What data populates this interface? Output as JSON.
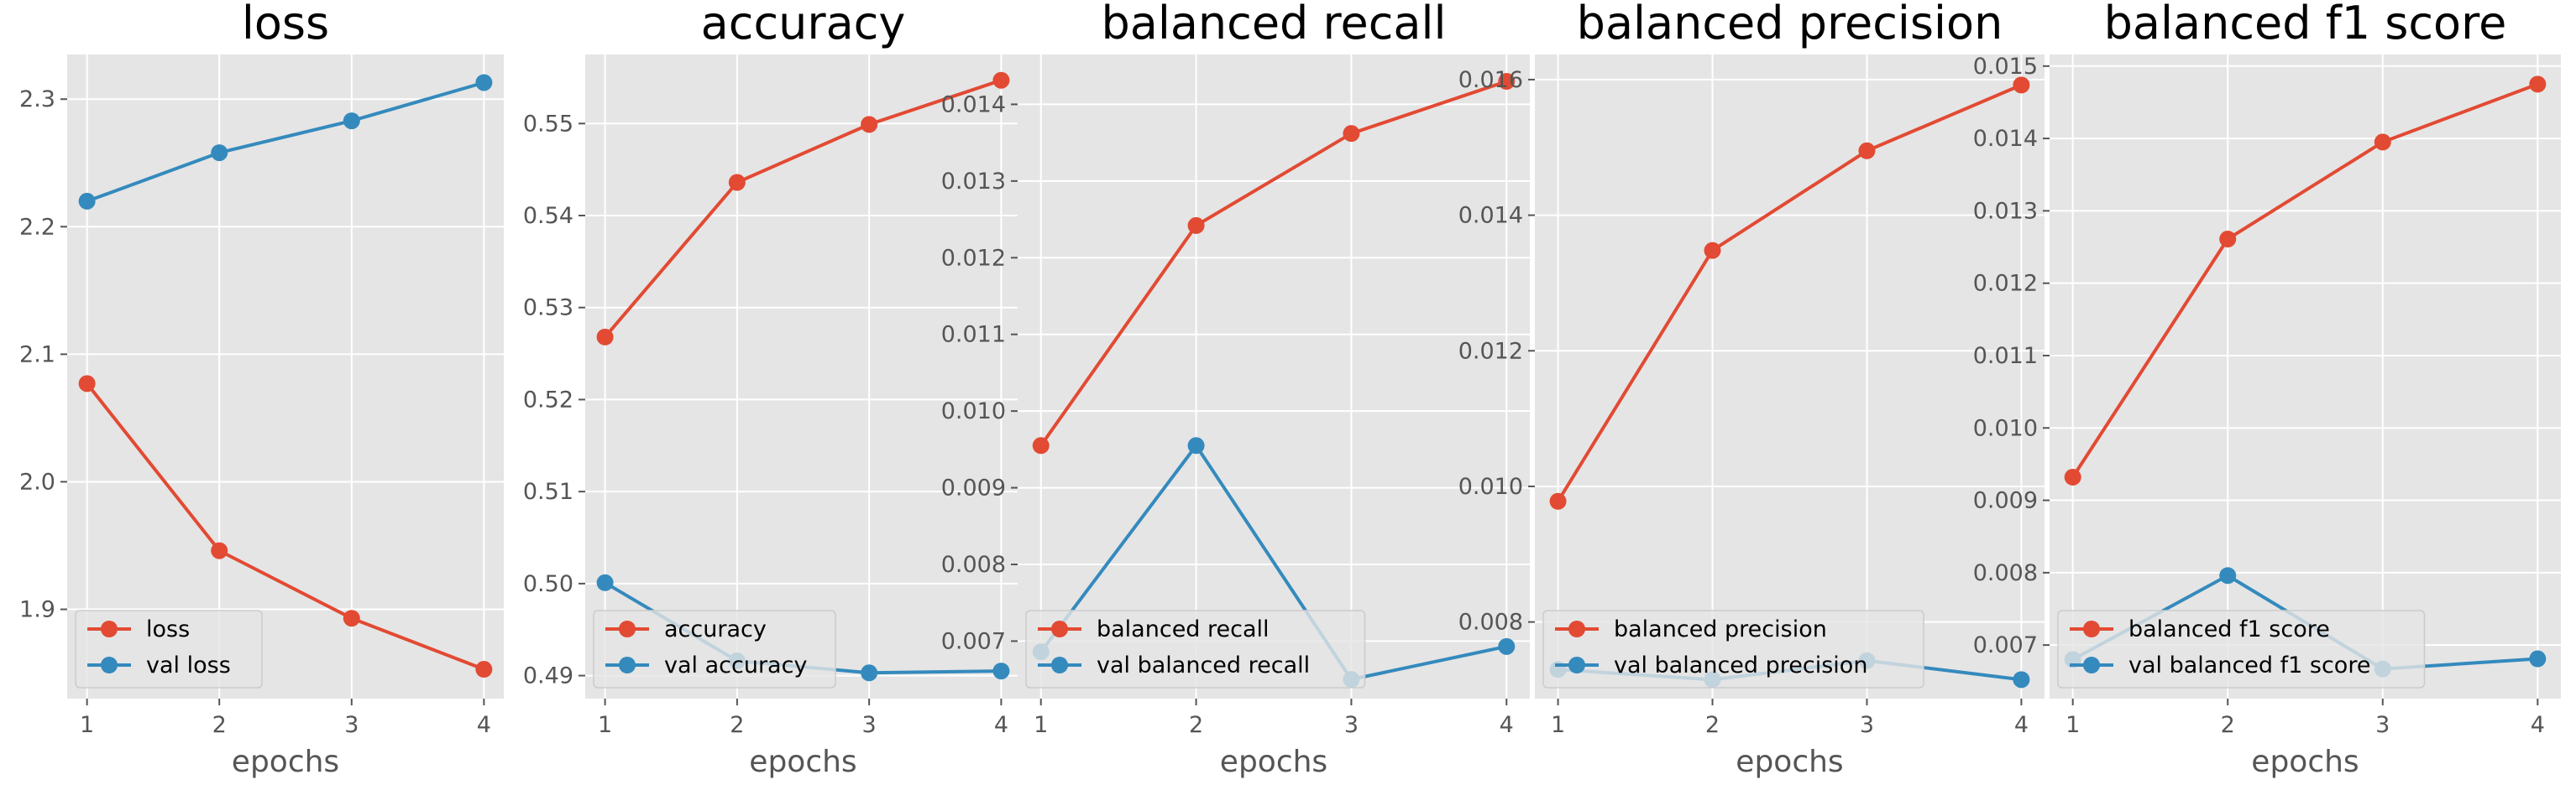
{
  "colors": {
    "train": "#E24A33",
    "val": "#348ABD",
    "panel_bg": "#E5E5E5",
    "grid": "#FFFFFF",
    "tick_text": "#555555"
  },
  "chart_data": [
    {
      "type": "line",
      "title": "loss",
      "xlabel": "epochs",
      "x": [
        1,
        2,
        3,
        4
      ],
      "xticks": [
        "1",
        "2",
        "3",
        "4"
      ],
      "ylim": [
        1.83,
        2.335
      ],
      "yticks": [
        "1.9",
        "2.0",
        "2.1",
        "2.2",
        "2.3"
      ],
      "ytick_values": [
        1.9,
        2.0,
        2.1,
        2.2,
        2.3
      ],
      "legend": "lower-left",
      "grid": true,
      "series": [
        {
          "name": "loss",
          "values": [
            2.077,
            1.946,
            1.893,
            1.853
          ]
        },
        {
          "name": "val loss",
          "values": [
            2.22,
            2.258,
            2.283,
            2.313
          ]
        }
      ]
    },
    {
      "type": "line",
      "title": "accuracy",
      "xlabel": "epochs",
      "x": [
        1,
        2,
        3,
        4
      ],
      "xticks": [
        "1",
        "2",
        "3",
        "4"
      ],
      "ylim": [
        0.4875,
        0.5575
      ],
      "yticks": [
        "0.49",
        "0.50",
        "0.51",
        "0.52",
        "0.53",
        "0.54",
        "0.55"
      ],
      "ytick_values": [
        0.49,
        0.5,
        0.51,
        0.52,
        0.53,
        0.54,
        0.55
      ],
      "legend": "lower-left",
      "grid": true,
      "series": [
        {
          "name": "accuracy",
          "values": [
            0.5268,
            0.5436,
            0.5499,
            0.5547
          ]
        },
        {
          "name": "val accuracy",
          "values": [
            0.5001,
            0.4916,
            0.4903,
            0.4905
          ]
        }
      ]
    },
    {
      "type": "line",
      "title": "balanced recall",
      "xlabel": "epochs",
      "x": [
        1,
        2,
        3,
        4
      ],
      "xticks": [
        "1",
        "2",
        "3",
        "4"
      ],
      "ylim": [
        0.00625,
        0.01465
      ],
      "yticks": [
        "0.007",
        "0.008",
        "0.009",
        "0.010",
        "0.011",
        "0.012",
        "0.013",
        "0.014"
      ],
      "ytick_values": [
        0.007,
        0.008,
        0.009,
        0.01,
        0.011,
        0.012,
        0.013,
        0.014
      ],
      "legend": "lower-left",
      "grid": true,
      "series": [
        {
          "name": "balanced recall",
          "values": [
            0.00955,
            0.01242,
            0.01362,
            0.0143
          ]
        },
        {
          "name": "val balanced recall",
          "values": [
            0.00686,
            0.00955,
            0.0065,
            0.00693
          ]
        }
      ]
    },
    {
      "type": "line",
      "title": "balanced precision",
      "xlabel": "epochs",
      "x": [
        1,
        2,
        3,
        4
      ],
      "xticks": [
        "1",
        "2",
        "3",
        "4"
      ],
      "ylim": [
        0.00687,
        0.01637
      ],
      "yticks": [
        "0.008",
        "0.010",
        "0.012",
        "0.014",
        "0.016"
      ],
      "ytick_values": [
        0.008,
        0.01,
        0.012,
        0.014,
        0.016
      ],
      "legend": "lower-left",
      "grid": true,
      "series": [
        {
          "name": "balanced precision",
          "values": [
            0.00978,
            0.01348,
            0.01495,
            0.01592
          ]
        },
        {
          "name": "val balanced precision",
          "values": [
            0.0073,
            0.00715,
            0.00743,
            0.00715
          ]
        }
      ]
    },
    {
      "type": "line",
      "title": "balanced f1 score",
      "xlabel": "epochs",
      "x": [
        1,
        2,
        3,
        4
      ],
      "xticks": [
        "1",
        "2",
        "3",
        "4"
      ],
      "ylim": [
        0.00626,
        0.01516
      ],
      "yticks": [
        "0.007",
        "0.008",
        "0.009",
        "0.010",
        "0.011",
        "0.012",
        "0.013",
        "0.014",
        "0.015"
      ],
      "ytick_values": [
        0.007,
        0.008,
        0.009,
        0.01,
        0.011,
        0.012,
        0.013,
        0.014,
        0.015
      ],
      "legend": "lower-left",
      "grid": true,
      "series": [
        {
          "name": "balanced f1 score",
          "values": [
            0.00932,
            0.01261,
            0.01395,
            0.01475
          ]
        },
        {
          "name": "val balanced f1 score",
          "values": [
            0.0068,
            0.00796,
            0.00667,
            0.00681
          ]
        }
      ]
    }
  ]
}
